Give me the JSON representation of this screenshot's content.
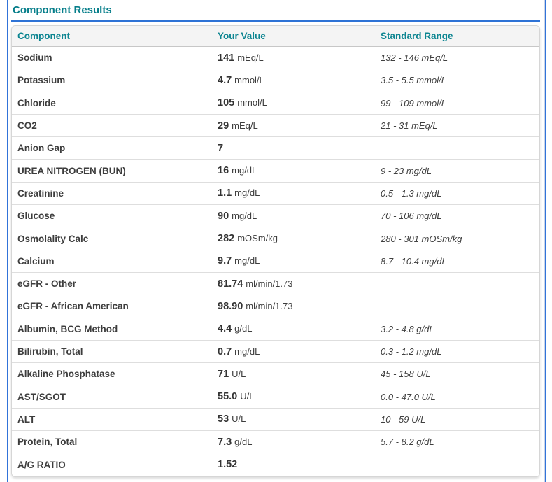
{
  "panel": {
    "title": "Component Results",
    "accent_teal": "#0d8591",
    "accent_blue": "#2e73d6"
  },
  "table": {
    "columns": [
      "Component",
      "Your Value",
      "Standard Range"
    ],
    "rows": [
      {
        "component": "Sodium",
        "value": "141",
        "unit": "mEq/L",
        "range": "132 - 146 mEq/L"
      },
      {
        "component": "Potassium",
        "value": "4.7",
        "unit": "mmol/L",
        "range": "3.5 - 5.5 mmol/L"
      },
      {
        "component": "Chloride",
        "value": "105",
        "unit": "mmol/L",
        "range": "99 - 109 mmol/L"
      },
      {
        "component": "CO2",
        "value": "29",
        "unit": "mEq/L",
        "range": "21 - 31 mEq/L"
      },
      {
        "component": "Anion Gap",
        "value": "7",
        "unit": "",
        "range": ""
      },
      {
        "component": "UREA NITROGEN (BUN)",
        "value": "16",
        "unit": "mg/dL",
        "range": "9 - 23 mg/dL"
      },
      {
        "component": "Creatinine",
        "value": "1.1",
        "unit": "mg/dL",
        "range": "0.5 - 1.3 mg/dL"
      },
      {
        "component": "Glucose",
        "value": "90",
        "unit": "mg/dL",
        "range": "70 - 106 mg/dL"
      },
      {
        "component": "Osmolality Calc",
        "value": "282",
        "unit": "mOSm/kg",
        "range": "280 - 301 mOSm/kg"
      },
      {
        "component": "Calcium",
        "value": "9.7",
        "unit": "mg/dL",
        "range": "8.7 - 10.4 mg/dL"
      },
      {
        "component": "eGFR - Other",
        "value": "81.74",
        "unit": "ml/min/1.73",
        "range": ""
      },
      {
        "component": "eGFR - African American",
        "value": "98.90",
        "unit": "ml/min/1.73",
        "range": ""
      },
      {
        "component": "Albumin, BCG Method",
        "value": "4.4",
        "unit": "g/dL",
        "range": "3.2 - 4.8 g/dL"
      },
      {
        "component": "Bilirubin, Total",
        "value": "0.7",
        "unit": "mg/dL",
        "range": "0.3 - 1.2 mg/dL"
      },
      {
        "component": "Alkaline Phosphatase",
        "value": "71",
        "unit": "U/L",
        "range": "45 - 158 U/L"
      },
      {
        "component": "AST/SGOT",
        "value": "55.0",
        "unit": "U/L",
        "range": "0.0 - 47.0 U/L"
      },
      {
        "component": "ALT",
        "value": "53",
        "unit": "U/L",
        "range": "10 - 59 U/L"
      },
      {
        "component": "Protein, Total",
        "value": "7.3",
        "unit": "g/dL",
        "range": "5.7 - 8.2 g/dL"
      },
      {
        "component": "A/G RATIO",
        "value": "1.52",
        "unit": "",
        "range": ""
      }
    ]
  }
}
